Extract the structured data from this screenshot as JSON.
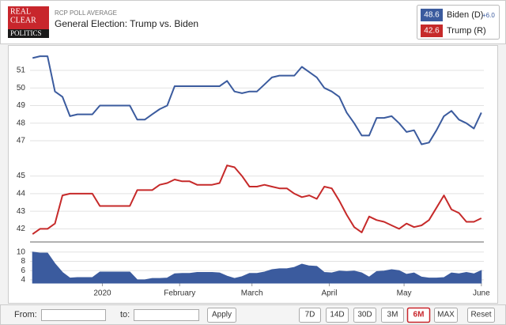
{
  "header": {
    "logo": [
      "REAL",
      "CLEAR",
      "POLITICS"
    ],
    "kicker": "RCP POLL AVERAGE",
    "title": "General Election: Trump vs. Biden"
  },
  "legend": {
    "entries": [
      {
        "value": "48.6",
        "spread": "+6.0"
      },
      {
        "value": "42.6"
      }
    ]
  },
  "chart_data": [
    {
      "type": "line",
      "grid": true,
      "x": [
        3,
        6,
        9,
        12,
        15,
        18,
        21,
        24,
        27,
        30,
        33,
        36,
        39,
        42,
        45,
        48,
        51,
        54,
        57,
        60,
        63,
        66,
        69,
        72,
        75,
        78,
        81,
        84,
        87,
        90,
        93,
        96,
        99,
        102,
        105,
        108,
        111,
        114,
        117,
        120,
        123,
        126,
        129,
        132,
        135,
        138,
        141,
        144,
        147,
        150,
        153,
        156,
        159,
        162,
        165,
        168,
        171,
        174,
        177,
        180,
        183
      ],
      "xlim": [
        2,
        184
      ],
      "ylim": [
        41.3,
        52.3
      ],
      "yticks": [
        42,
        43,
        44,
        45,
        47,
        48,
        49,
        50,
        51
      ],
      "series": [
        {
          "name": "Biden (D)",
          "color": "#3b5b9e",
          "values": [
            51.7,
            51.8,
            51.8,
            49.8,
            49.5,
            48.4,
            48.5,
            48.5,
            48.5,
            49.0,
            49.0,
            49.0,
            49.0,
            49.0,
            48.2,
            48.2,
            48.5,
            48.8,
            49.0,
            50.1,
            50.1,
            50.1,
            50.1,
            50.1,
            50.1,
            50.1,
            50.4,
            49.8,
            49.7,
            49.8,
            49.8,
            50.2,
            50.6,
            50.7,
            50.7,
            50.7,
            51.2,
            50.9,
            50.6,
            50.0,
            49.8,
            49.5,
            48.6,
            48.0,
            47.3,
            47.3,
            48.3,
            48.3,
            48.4,
            48.0,
            47.5,
            47.6,
            46.8,
            46.9,
            47.6,
            48.4,
            48.7,
            48.2,
            48.0,
            47.7,
            48.6
          ]
        },
        {
          "name": "Trump (R)",
          "color": "#c62a2a",
          "values": [
            41.7,
            42.0,
            42.0,
            42.3,
            43.9,
            44.0,
            44.0,
            44.0,
            44.0,
            43.3,
            43.3,
            43.3,
            43.3,
            43.3,
            44.2,
            44.2,
            44.2,
            44.5,
            44.6,
            44.8,
            44.7,
            44.7,
            44.5,
            44.5,
            44.5,
            44.6,
            45.6,
            45.5,
            45.0,
            44.4,
            44.4,
            44.5,
            44.4,
            44.3,
            44.3,
            44.0,
            43.8,
            43.9,
            43.7,
            44.4,
            44.3,
            43.6,
            42.8,
            42.1,
            41.8,
            42.7,
            42.5,
            42.4,
            42.2,
            42.0,
            42.3,
            42.1,
            42.2,
            42.5,
            43.2,
            43.9,
            43.1,
            42.9,
            42.4,
            42.4,
            42.6
          ]
        }
      ]
    },
    {
      "type": "area",
      "color": "#3b5b9e",
      "x": [
        3,
        6,
        9,
        12,
        15,
        18,
        21,
        24,
        27,
        30,
        33,
        36,
        39,
        42,
        45,
        48,
        51,
        54,
        57,
        60,
        63,
        66,
        69,
        72,
        75,
        78,
        81,
        84,
        87,
        90,
        93,
        96,
        99,
        102,
        105,
        108,
        111,
        114,
        117,
        120,
        123,
        126,
        129,
        132,
        135,
        138,
        141,
        144,
        147,
        150,
        153,
        156,
        159,
        162,
        165,
        168,
        171,
        174,
        177,
        180,
        183
      ],
      "values": [
        10.0,
        9.8,
        9.8,
        7.5,
        5.6,
        4.4,
        4.5,
        4.5,
        4.5,
        5.7,
        5.7,
        5.7,
        5.7,
        5.7,
        4.0,
        4.0,
        4.3,
        4.3,
        4.4,
        5.3,
        5.4,
        5.4,
        5.6,
        5.6,
        5.6,
        5.5,
        4.8,
        4.3,
        4.7,
        5.4,
        5.4,
        5.7,
        6.2,
        6.4,
        6.4,
        6.7,
        7.4,
        7.0,
        6.9,
        5.6,
        5.5,
        5.9,
        5.8,
        5.9,
        5.5,
        4.6,
        5.8,
        5.9,
        6.2,
        6.0,
        5.2,
        5.5,
        4.6,
        4.4,
        4.4,
        4.5,
        5.5,
        5.3,
        5.6,
        5.3,
        6.0
      ],
      "xlim": [
        2,
        184
      ],
      "xticks": [
        {
          "value": 31,
          "label": "2020"
        },
        {
          "value": 62,
          "label": "February"
        },
        {
          "value": 91,
          "label": "March"
        },
        {
          "value": 122,
          "label": "April"
        },
        {
          "value": 152,
          "label": "May"
        },
        {
          "value": 183,
          "label": "June"
        }
      ],
      "ylim": [
        3.3,
        11.5
      ],
      "yticks": [
        4,
        6,
        8,
        10
      ]
    }
  ],
  "controls": {
    "from": "From:",
    "to": "to:",
    "apply": "Apply",
    "ranges": [
      "7D",
      "14D",
      "30D",
      "3M",
      "6M",
      "MAX"
    ],
    "active_range": 4,
    "reset": "Reset"
  }
}
